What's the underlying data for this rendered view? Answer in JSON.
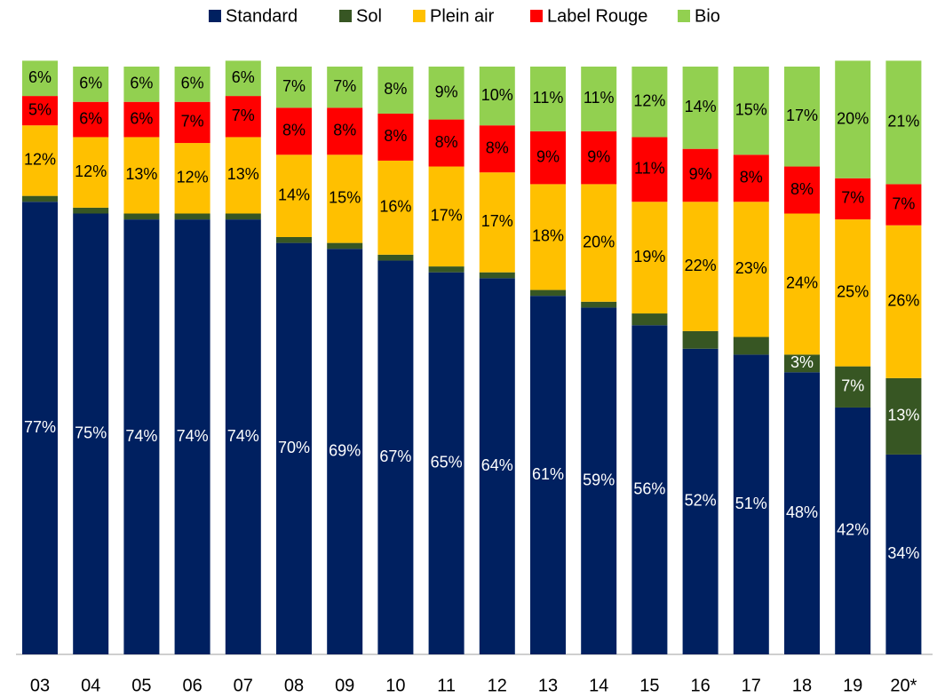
{
  "chart_data": {
    "type": "stacked_bar",
    "categories": [
      "03",
      "04",
      "05",
      "06",
      "07",
      "08",
      "09",
      "10",
      "11",
      "12",
      "13",
      "14",
      "15",
      "16",
      "17",
      "18",
      "19",
      "20*"
    ],
    "ylim": [
      0,
      100
    ],
    "series": [
      {
        "name": "Standard",
        "color": "#002060",
        "values": [
          77,
          75,
          74,
          74,
          74,
          70,
          69,
          67,
          65,
          64,
          61,
          59,
          56,
          52,
          51,
          48,
          42,
          34
        ],
        "value_labels": [
          "77%",
          "75%",
          "74%",
          "74%",
          "74%",
          "70%",
          "69%",
          "67%",
          "65%",
          "64%",
          "61%",
          "59%",
          "56%",
          "52%",
          "51%",
          "48%",
          "42%",
          "34%"
        ]
      },
      {
        "name": "Sol",
        "color": "#375623",
        "values": [
          1,
          1,
          1,
          1,
          1,
          1,
          1,
          1,
          1,
          1,
          1,
          1,
          2,
          3,
          3,
          3,
          7,
          13
        ],
        "value_labels": [
          null,
          null,
          null,
          null,
          null,
          null,
          null,
          null,
          null,
          null,
          null,
          null,
          null,
          null,
          null,
          "3%",
          "7%",
          "13%"
        ]
      },
      {
        "name": "Plein air",
        "color": "#ffc000",
        "values": [
          12,
          12,
          13,
          12,
          13,
          14,
          15,
          16,
          17,
          17,
          18,
          20,
          19,
          22,
          23,
          24,
          25,
          26
        ],
        "value_labels": [
          "12%",
          "12%",
          "13%",
          "12%",
          "13%",
          "14%",
          "15%",
          "16%",
          "17%",
          "17%",
          "18%",
          "20%",
          "19%",
          "22%",
          "23%",
          "24%",
          "25%",
          "26%"
        ]
      },
      {
        "name": "Label Rouge",
        "color": "#ff0000",
        "values": [
          5,
          6,
          6,
          7,
          7,
          8,
          8,
          8,
          8,
          8,
          9,
          9,
          11,
          9,
          8,
          8,
          7,
          7
        ],
        "value_labels": [
          "5%",
          "6%",
          "6%",
          "7%",
          "7%",
          "8%",
          "8%",
          "8%",
          "8%",
          "8%",
          "9%",
          "9%",
          "11%",
          "9%",
          "8%",
          "8%",
          "7%",
          "7%"
        ]
      },
      {
        "name": "Bio",
        "color": "#92d050",
        "values": [
          6,
          6,
          6,
          6,
          6,
          7,
          7,
          8,
          9,
          10,
          11,
          11,
          12,
          14,
          15,
          17,
          20,
          21
        ],
        "value_labels": [
          "6%",
          "6%",
          "6%",
          "6%",
          "6%",
          "7%",
          "7%",
          "8%",
          "9%",
          "10%",
          "11%",
          "11%",
          "12%",
          "14%",
          "15%",
          "17%",
          "20%",
          "21%"
        ]
      }
    ]
  }
}
